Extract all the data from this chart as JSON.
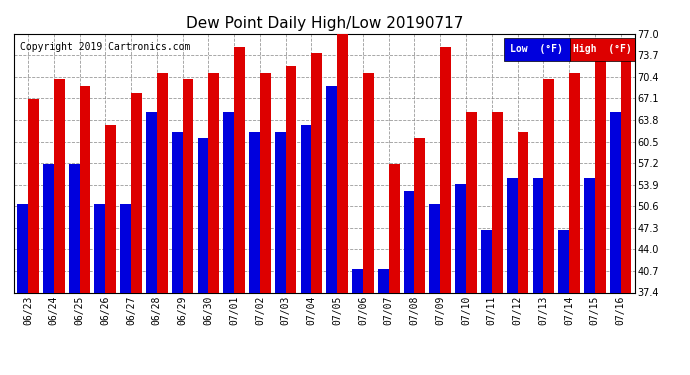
{
  "title": "Dew Point Daily High/Low 20190717",
  "copyright": "Copyright 2019 Cartronics.com",
  "dates": [
    "06/23",
    "06/24",
    "06/25",
    "06/26",
    "06/27",
    "06/28",
    "06/29",
    "06/30",
    "07/01",
    "07/02",
    "07/03",
    "07/04",
    "07/05",
    "07/06",
    "07/07",
    "07/08",
    "07/09",
    "07/10",
    "07/11",
    "07/12",
    "07/13",
    "07/14",
    "07/15",
    "07/16"
  ],
  "low": [
    51,
    57,
    57,
    51,
    51,
    65,
    62,
    61,
    65,
    62,
    62,
    63,
    69,
    41,
    41,
    53,
    51,
    54,
    47,
    55,
    55,
    47,
    55,
    65
  ],
  "high": [
    67,
    70,
    69,
    63,
    68,
    71,
    70,
    71,
    75,
    71,
    72,
    74,
    77,
    71,
    57,
    61,
    75,
    65,
    65,
    62,
    70,
    71,
    73,
    73
  ],
  "low_color": "#0000dd",
  "high_color": "#dd0000",
  "bg_color": "#ffffff",
  "ylim_min": 37.4,
  "ylim_max": 77.0,
  "yticks": [
    37.4,
    40.7,
    44.0,
    47.3,
    50.6,
    53.9,
    57.2,
    60.5,
    63.8,
    67.1,
    70.4,
    73.7,
    77.0
  ],
  "legend_low_label": "Low  (°F)",
  "legend_high_label": "High  (°F)",
  "title_fontsize": 11,
  "tick_fontsize": 7,
  "copyright_fontsize": 7
}
